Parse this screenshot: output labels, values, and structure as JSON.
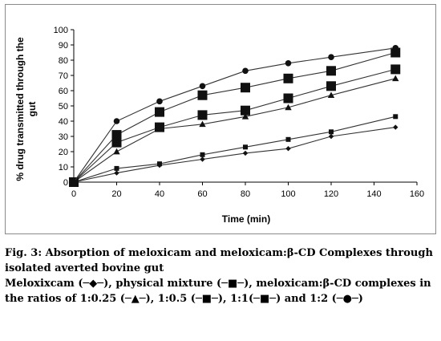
{
  "chart_data": {
    "type": "line",
    "ylabel_line1": "% drug transmitted through the",
    "ylabel_line2": "gut",
    "xlabel": "Time (min)",
    "xlim": [
      0,
      160
    ],
    "ylim": [
      0,
      100
    ],
    "x_ticks": [
      "0",
      "20",
      "40",
      "60",
      "80",
      "100",
      "120",
      "140",
      "160"
    ],
    "y_ticks": [
      "0",
      "10",
      "20",
      "30",
      "40",
      "50",
      "60",
      "70",
      "80",
      "90",
      "100"
    ],
    "x": [
      0,
      20,
      40,
      60,
      80,
      100,
      120,
      150
    ],
    "grid": false,
    "legend": "none",
    "series": [
      {
        "marker": "diamond",
        "values": [
          0,
          6,
          11,
          15,
          19,
          22,
          30,
          36
        ]
      },
      {
        "marker": "small-square",
        "values": [
          0,
          9,
          12,
          18,
          23,
          28,
          33,
          43
        ]
      },
      {
        "marker": "triangle",
        "values": [
          0,
          20,
          35,
          38,
          43,
          49,
          57,
          68
        ]
      },
      {
        "marker": "large-square",
        "values": [
          0,
          26,
          36,
          44,
          47,
          55,
          63,
          74
        ]
      },
      {
        "marker": "large-square",
        "values": [
          0,
          31,
          46,
          57,
          62,
          68,
          73,
          85
        ]
      },
      {
        "marker": "circle",
        "values": [
          0,
          40,
          53,
          63,
          73,
          78,
          82,
          88
        ]
      }
    ]
  },
  "caption": {
    "title": "Fig. 3: Absorption of meloxicam and meloxicam:β-CD Complexes through isolated averted bovine gut",
    "body": "Meloxixcam (─◆─), physical mixture (─■─), meloxicam:β-CD complexes in the ratios of  1:0.25 (─▲─), 1:0.5 (─■─), 1:1(─■─) and 1:2 (─●─)"
  },
  "colors": {
    "line": "#333333",
    "marker": "#111111"
  }
}
